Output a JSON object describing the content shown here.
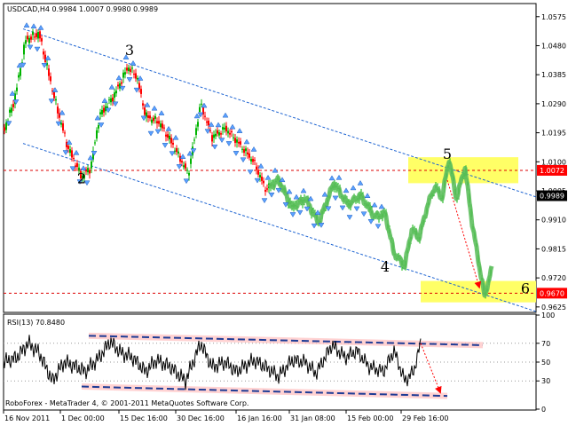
{
  "chart_data": [
    {
      "type": "candlestick",
      "title": "USDCAD,H4  0.9984 1.0007 0.9980 0.9989",
      "ylim": [
        0.961,
        1.0615
      ],
      "y_ticks": [
        "1.0575",
        "1.0480",
        "1.0385",
        "1.0290",
        "1.0195",
        "1.0100",
        "1.0005",
        "0.9910",
        "0.9815",
        "0.9720",
        "0.9625"
      ],
      "y_tick_values": [
        1.0575,
        1.048,
        1.0385,
        1.029,
        1.0195,
        1.01,
        1.0005,
        0.991,
        0.9815,
        0.972,
        0.9625
      ],
      "price_tags": [
        {
          "label": "1.0072",
          "value": 1.0072,
          "color": "#ff0000"
        },
        {
          "label": "0.9989",
          "value": 0.9989,
          "color": "#000000"
        },
        {
          "label": "0.9670",
          "value": 0.967,
          "color": "#ff0000"
        }
      ],
      "waves": [
        {
          "label": "2",
          "idx": 88,
          "value": 1.003
        },
        {
          "label": "3",
          "idx": 142,
          "value": 1.045
        },
        {
          "label": "4",
          "idx": 430,
          "value": 0.974
        },
        {
          "label": "5",
          "idx": 500,
          "value": 1.011
        },
        {
          "label": "6",
          "idx": 588,
          "value": 0.967
        }
      ],
      "series": [
        {
          "name": "price",
          "anchors": [
            [
              0,
              1.02
            ],
            [
              12,
              1.03
            ],
            [
              25,
              1.05
            ],
            [
              40,
              1.052
            ],
            [
              58,
              1.03
            ],
            [
              72,
              1.015
            ],
            [
              88,
              1.005
            ],
            [
              98,
              1.008
            ],
            [
              108,
              1.025
            ],
            [
              125,
              1.032
            ],
            [
              140,
              1.041
            ],
            [
              150,
              1.038
            ],
            [
              160,
              1.025
            ],
            [
              175,
              1.023
            ],
            [
              190,
              1.016
            ],
            [
              208,
              1.006
            ],
            [
              222,
              1.029
            ],
            [
              235,
              1.018
            ],
            [
              250,
              1.021
            ],
            [
              262,
              1.017
            ],
            [
              282,
              1.01
            ],
            [
              295,
              1.001
            ],
            [
              310,
              1.004
            ],
            [
              325,
              0.995
            ],
            [
              340,
              0.998
            ],
            [
              355,
              0.99
            ],
            [
              372,
              1.003
            ],
            [
              388,
              0.996
            ],
            [
              402,
              0.999
            ],
            [
              418,
              0.992
            ],
            [
              430,
              0.993
            ],
            [
              440,
              0.98
            ],
            [
              452,
              0.976
            ],
            [
              460,
              0.988
            ],
            [
              468,
              0.985
            ],
            [
              478,
              0.996
            ],
            [
              486,
              1.002
            ],
            [
              494,
              0.998
            ],
            [
              502,
              1.011
            ],
            [
              510,
              0.998
            ],
            [
              520,
              1.008
            ],
            [
              528,
              0.99
            ],
            [
              536,
              0.976
            ],
            [
              542,
              0.966
            ],
            [
              550,
              0.975
            ]
          ]
        }
      ],
      "channels": [
        {
          "points": [
            [
              22,
              1.0535
            ],
            [
              600,
              0.9985
            ]
          ],
          "color": "#1e64d2"
        },
        {
          "points": [
            [
              22,
              1.016
            ],
            [
              600,
              0.961
            ]
          ],
          "color": "#1e64d2"
        }
      ],
      "hlines": [
        {
          "value": 1.0072,
          "color": "#dd0000"
        },
        {
          "value": 0.967,
          "color": "#dd0000"
        }
      ],
      "zones": [
        {
          "x": [
            456,
            580
          ],
          "y": [
            1.0115,
            1.003
          ],
          "color": "#ffff66"
        },
        {
          "x": [
            470,
            600
          ],
          "y": [
            0.971,
            0.964
          ],
          "color": "#ffff66"
        }
      ],
      "arrows": [
        {
          "from": [
            500,
            1.004
          ],
          "to": [
            536,
            0.969
          ],
          "color": "#ff0000"
        }
      ]
    },
    {
      "type": "line",
      "title": "RSI(13) 70.8480",
      "ylim": [
        0,
        100
      ],
      "y_ticks": [
        "100",
        "70",
        "50",
        "30",
        "0"
      ],
      "y_tick_values": [
        100,
        70,
        50,
        30,
        0
      ],
      "x_labels": [
        "16 Nov 2011",
        "1 Dec 00:00",
        "15 Dec 16:00",
        "30 Dec 16:00",
        "16 Jan 16:00",
        "31 Jan 08:00",
        "15 Feb 00:00",
        "29 Feb 16:00"
      ],
      "x_label_idx": [
        0,
        64,
        130,
        194,
        262,
        322,
        386,
        448
      ],
      "series": [
        {
          "name": "RSI",
          "anchors": [
            [
              0,
              50
            ],
            [
              15,
              55
            ],
            [
              28,
              70
            ],
            [
              40,
              60
            ],
            [
              55,
              30
            ],
            [
              68,
              50
            ],
            [
              82,
              45
            ],
            [
              92,
              40
            ],
            [
              108,
              55
            ],
            [
              120,
              72
            ],
            [
              132,
              60
            ],
            [
              145,
              55
            ],
            [
              160,
              40
            ],
            [
              172,
              52
            ],
            [
              188,
              45
            ],
            [
              205,
              30
            ],
            [
              222,
              70
            ],
            [
              235,
              45
            ],
            [
              250,
              50
            ],
            [
              262,
              40
            ],
            [
              282,
              52
            ],
            [
              295,
              45
            ],
            [
              310,
              35
            ],
            [
              325,
              52
            ],
            [
              340,
              50
            ],
            [
              352,
              38
            ],
            [
              370,
              68
            ],
            [
              385,
              55
            ],
            [
              398,
              62
            ],
            [
              412,
              45
            ],
            [
              428,
              40
            ],
            [
              440,
              62
            ],
            [
              452,
              30
            ],
            [
              462,
              40
            ],
            [
              470,
              70
            ]
          ]
        }
      ],
      "channels": [
        {
          "points": [
            [
              96,
              78
            ],
            [
              540,
              68
            ]
          ],
          "color": "#1e3c96"
        },
        {
          "points": [
            [
              88,
              24
            ],
            [
              500,
              14
            ]
          ],
          "color": "#1e3c96"
        }
      ],
      "arrows": [
        {
          "from": [
            470,
            70
          ],
          "to": [
            492,
            18
          ],
          "color": "#ff0000"
        }
      ]
    }
  ],
  "footer": "RoboForex - MetaTrader 4, © 2001-2011 MetaQuotes Software Corp."
}
